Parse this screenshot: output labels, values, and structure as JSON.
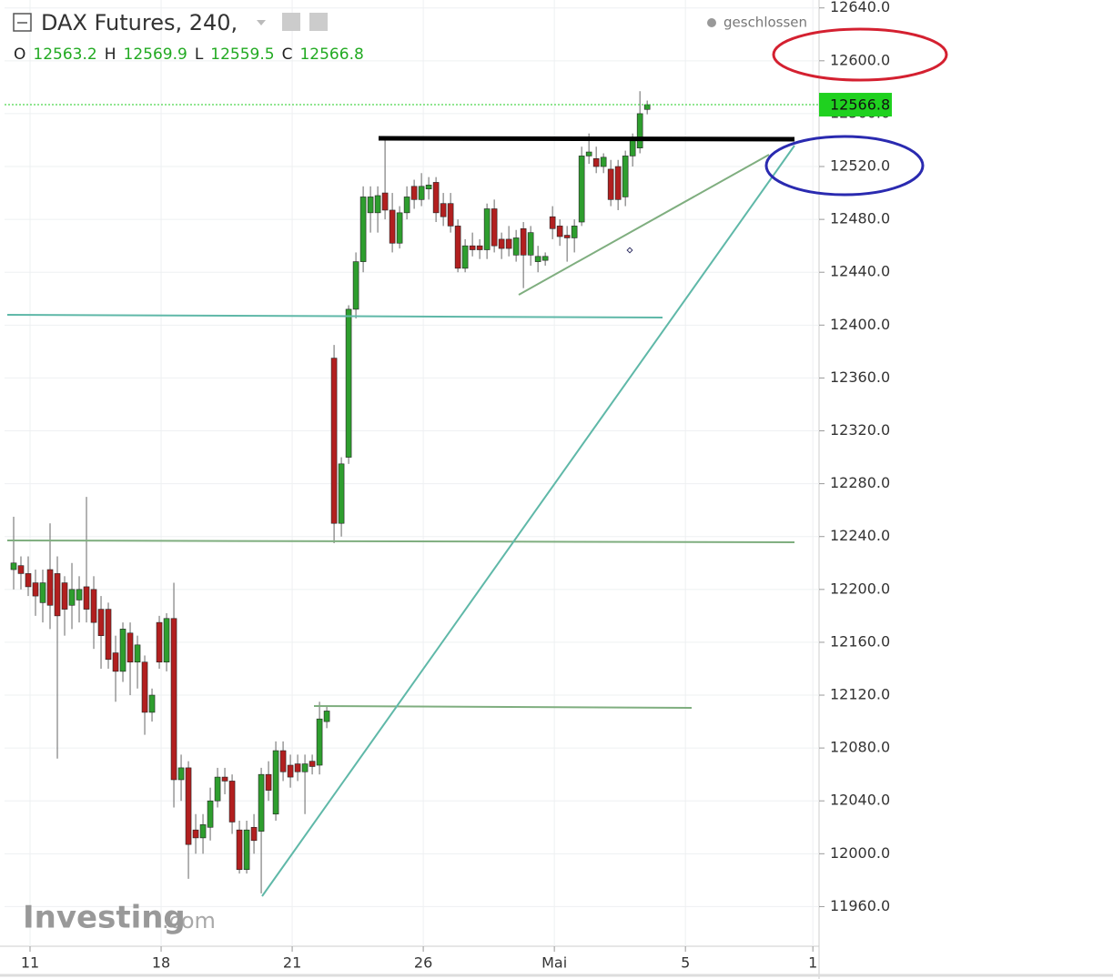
{
  "chart_data": {
    "type": "candlestick",
    "title": "DAX Futures, 240,",
    "status": "geschlossen",
    "watermark": "Investing",
    "watermark_suffix": ".com",
    "ohlc_legend": [
      {
        "label": "O",
        "value": 12563.2
      },
      {
        "label": "H",
        "value": 12569.9
      },
      {
        "label": "L",
        "value": 12559.5
      },
      {
        "label": "C",
        "value": 12566.8
      }
    ],
    "last_price": 12566.8,
    "up_color": "#2e9e2e",
    "down_color": "#b21f1f",
    "grid": true,
    "open": [
      12215,
      12218,
      12212,
      12205,
      12190,
      12215,
      12212,
      12205,
      12188,
      12192,
      12202,
      12200,
      12185,
      12185,
      12152,
      12138,
      12167,
      12145,
      12145,
      12107,
      12175,
      12145,
      12178,
      12056,
      12065,
      12018,
      12012,
      12020,
      12040,
      12058,
      12055,
      12018,
      11988,
      12020,
      12017,
      12060,
      12030,
      12078,
      12067,
      12068,
      12062,
      12070,
      12067,
      12100,
      12375,
      12250,
      12300,
      12412,
      12448,
      12485,
      12485,
      12500,
      12487,
      12462,
      12485,
      12505,
      12495,
      12503,
      12508,
      12492,
      12492,
      12475,
      12443,
      12460,
      12460,
      12457,
      12488,
      12465,
      12465,
      12453,
      12473,
      12453,
      12448,
      12449,
      12482,
      12475,
      12468,
      12466,
      12478,
      12528,
      12526,
      12520,
      12518,
      12520,
      12497,
      12528,
      12534,
      12563.2
    ],
    "high": [
      12255,
      12225,
      12225,
      12215,
      12215,
      12250,
      12225,
      12210,
      12220,
      12210,
      12270,
      12210,
      12195,
      12190,
      12165,
      12175,
      12175,
      12165,
      12150,
      12125,
      12180,
      12182,
      12205,
      12075,
      12070,
      12030,
      12030,
      12050,
      12065,
      12065,
      12060,
      12025,
      12025,
      12030,
      12065,
      12070,
      12085,
      12085,
      12075,
      12075,
      12075,
      12075,
      12115,
      12112,
      12385,
      12300,
      12415,
      12455,
      12505,
      12505,
      12505,
      12540,
      12500,
      12490,
      12505,
      12510,
      12515,
      12512,
      12512,
      12500,
      12500,
      12480,
      12465,
      12470,
      12465,
      12492,
      12495,
      12470,
      12475,
      12472,
      12478,
      12475,
      12460,
      12455,
      12490,
      12480,
      12475,
      12480,
      12535,
      12545,
      12535,
      12530,
      12525,
      12525,
      12532,
      12545,
      12577,
      12569.9
    ],
    "low": [
      12200,
      12200,
      12195,
      12180,
      12175,
      12170,
      12072,
      12165,
      12170,
      12175,
      12175,
      12155,
      12140,
      12140,
      12115,
      12130,
      12120,
      12125,
      12090,
      12100,
      12140,
      12138,
      12035,
      12040,
      11981,
      12000,
      12000,
      12010,
      12035,
      12045,
      12015,
      11985,
      11985,
      12000,
      11970,
      12040,
      12025,
      12055,
      12050,
      12055,
      12030,
      12060,
      12060,
      12095,
      12235,
      12240,
      12295,
      12405,
      12440,
      12470,
      12470,
      12480,
      12455,
      12458,
      12480,
      12488,
      12490,
      12495,
      12478,
      12475,
      12470,
      12440,
      12440,
      12452,
      12450,
      12450,
      12455,
      12450,
      12452,
      12448,
      12428,
      12445,
      12440,
      12445,
      12465,
      12460,
      12448,
      12455,
      12475,
      12522,
      12515,
      12515,
      12490,
      12487,
      12490,
      12520,
      12530,
      12559.5
    ],
    "close": [
      12220,
      12212,
      12202,
      12195,
      12205,
      12188,
      12180,
      12185,
      12200,
      12200,
      12185,
      12175,
      12165,
      12147,
      12138,
      12170,
      12145,
      12158,
      12107,
      12120,
      12145,
      12178,
      12056,
      12065,
      12007,
      12012,
      12022,
      12040,
      12058,
      12055,
      12024,
      11988,
      12018,
      12010,
      12060,
      12048,
      12078,
      12062,
      12058,
      12062,
      12068,
      12066,
      12102,
      12108,
      12250,
      12295,
      12412,
      12448,
      12497,
      12497,
      12498,
      12487,
      12462,
      12485,
      12497,
      12495,
      12505,
      12506,
      12485,
      12482,
      12475,
      12443,
      12460,
      12457,
      12457,
      12488,
      12460,
      12458,
      12458,
      12466,
      12453,
      12470,
      12452,
      12452,
      12473,
      12467,
      12466,
      12475,
      12528,
      12531,
      12520,
      12527,
      12495,
      12495,
      12528,
      12540,
      12560,
      12566.8
    ],
    "xlim": [
      -1.25,
      110.6
    ],
    "xticks": [
      {
        "value": 2.25,
        "label": "11"
      },
      {
        "value": 20.25,
        "label": "18"
      },
      {
        "value": 38.25,
        "label": "21"
      },
      {
        "value": 56.25,
        "label": "26"
      },
      {
        "value": 74.25,
        "label": "Mai"
      },
      {
        "value": 92.25,
        "label": "5"
      },
      {
        "value": 109.75,
        "label": "1"
      }
    ],
    "ylim": [
      11930,
      12646
    ],
    "yticks": [
      {
        "value": 11960,
        "label": "11960.0"
      },
      {
        "value": 12000,
        "label": "12000.0"
      },
      {
        "value": 12040,
        "label": "12040.0"
      },
      {
        "value": 12080,
        "label": "12080.0"
      },
      {
        "value": 12120,
        "label": "12120.0"
      },
      {
        "value": 12160,
        "label": "12160.0"
      },
      {
        "value": 12200,
        "label": "12200.0"
      },
      {
        "value": 12240,
        "label": "12240.0"
      },
      {
        "value": 12280,
        "label": "12280.0"
      },
      {
        "value": 12320,
        "label": "12320.0"
      },
      {
        "value": 12360,
        "label": "12360.0"
      },
      {
        "value": 12400,
        "label": "12400.0"
      },
      {
        "value": 12440,
        "label": "12440.0"
      },
      {
        "value": 12480,
        "label": "12480.0"
      },
      {
        "value": 12520,
        "label": "12520.0"
      },
      {
        "value": 12560,
        "label": "12560.0"
      },
      {
        "value": 12600,
        "label": "12600.0"
      },
      {
        "value": 12640,
        "label": "12640.0"
      }
    ]
  }
}
